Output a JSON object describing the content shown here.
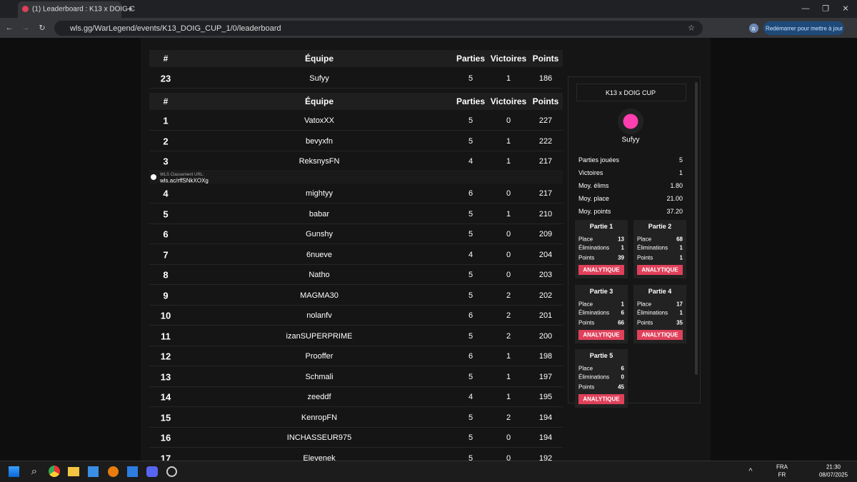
{
  "browser": {
    "tab_title": "(1) Leaderboard : K13 x DOIG C",
    "url": "wls.gg/WarLegend/events/K13_DOIG_CUP_1/0/leaderboard",
    "profile": "a",
    "update_button": "Redémarrer pour mettre à jour"
  },
  "leaderboard": {
    "header": [
      "#",
      "Équipe",
      "Parties",
      "Victoires",
      "Points"
    ],
    "my_row": [
      23,
      "Sufyy",
      5,
      1,
      186
    ],
    "rows": [
      [
        1,
        "VatoxXX",
        5,
        0,
        227
      ],
      [
        2,
        "bevyxfn",
        5,
        1,
        222
      ],
      [
        3,
        "ReksnysFN",
        4,
        1,
        217
      ],
      [
        4,
        "mightyy",
        6,
        0,
        217
      ],
      [
        5,
        "babar",
        5,
        1,
        210
      ],
      [
        6,
        "Gunshy",
        5,
        0,
        209
      ],
      [
        7,
        "6nueve",
        4,
        0,
        204
      ],
      [
        8,
        "Natho",
        5,
        0,
        203
      ],
      [
        9,
        "MAGMA30",
        5,
        2,
        202
      ],
      [
        10,
        "nolanfv",
        6,
        2,
        201
      ],
      [
        11,
        "izanSUPERPRIME",
        5,
        2,
        200
      ],
      [
        12,
        "Prooffer",
        6,
        1,
        198
      ],
      [
        13,
        "Schmali",
        5,
        1,
        197
      ],
      [
        14,
        "zeeddf",
        4,
        1,
        195
      ],
      [
        15,
        "KenropFN",
        5,
        2,
        194
      ],
      [
        16,
        "INCHASSEUR975",
        5,
        0,
        194
      ],
      [
        17,
        "Elevenek",
        5,
        0,
        192
      ]
    ],
    "watermark": {
      "label": "WLS Classement URL:",
      "url": "wls.ac/rffSNkXOXg"
    }
  },
  "side_panel": {
    "title": "K13 x DOIG CUP",
    "player": "Sufyy",
    "stats": [
      [
        "Parties jouées",
        "5"
      ],
      [
        "Victoires",
        "1"
      ],
      [
        "Moy. élims",
        "1.80"
      ],
      [
        "Moy. place",
        "21.00"
      ],
      [
        "Moy. points",
        "37.20"
      ]
    ],
    "game_labels": [
      "Place",
      "Éliminations",
      "Points"
    ],
    "button": "ANALYTIQUE",
    "games": [
      {
        "name": "Partie 1",
        "values": [
          13,
          1,
          39
        ]
      },
      {
        "name": "Partie 2",
        "values": [
          68,
          1,
          1
        ]
      },
      {
        "name": "Partie 3",
        "values": [
          1,
          6,
          66
        ]
      },
      {
        "name": "Partie 4",
        "values": [
          17,
          1,
          35
        ]
      },
      {
        "name": "Partie 5",
        "values": [
          6,
          0,
          45
        ]
      }
    ]
  },
  "taskbar": {
    "lang": "FRA",
    "layout": "FR",
    "time": "21:30",
    "date": "08/07/2025"
  }
}
